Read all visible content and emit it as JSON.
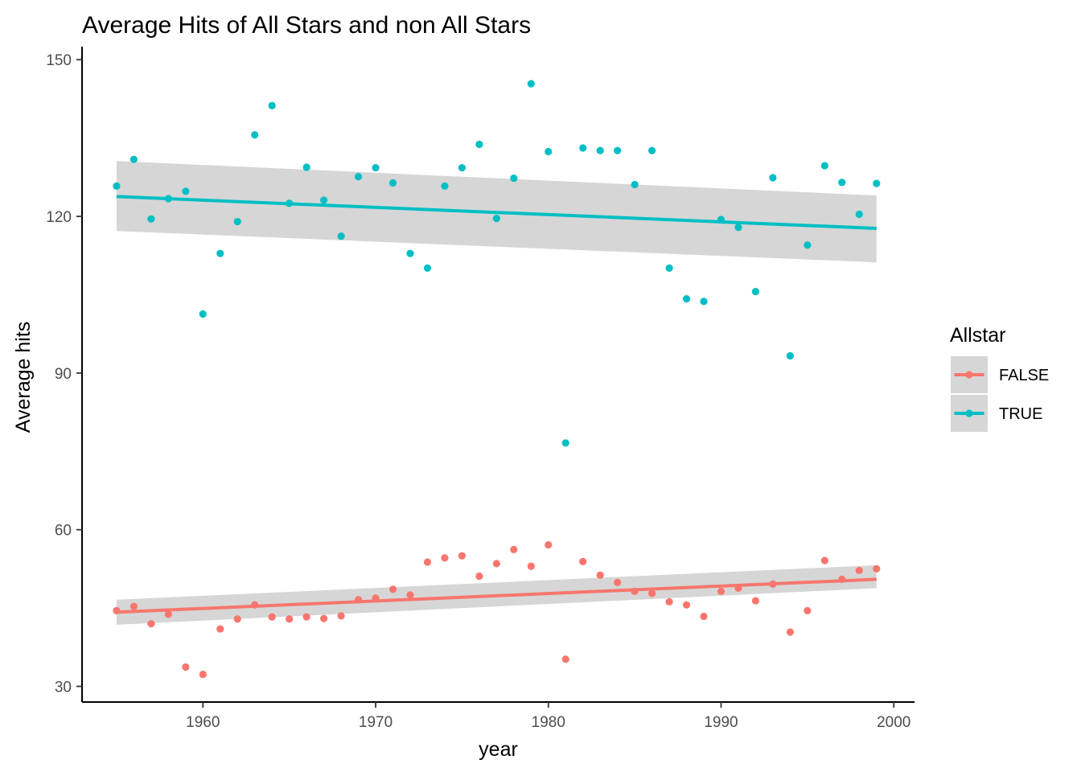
{
  "chart_data": {
    "type": "scatter",
    "title": "Average Hits of All Stars and non All Stars",
    "xlabel": "year",
    "ylabel": "Average hits",
    "xlim": [
      1953,
      2001.2
    ],
    "ylim": [
      27,
      152.5
    ],
    "x_ticks": [
      1960,
      1970,
      1980,
      1990,
      2000
    ],
    "y_ticks": [
      30,
      60,
      90,
      120,
      150
    ],
    "grid": false,
    "legend": {
      "title": "Allstar",
      "position": "right"
    },
    "series": [
      {
        "name": "FALSE",
        "color": "#F8766D",
        "x": [
          1955,
          1956,
          1957,
          1958,
          1959,
          1960,
          1961,
          1962,
          1963,
          1964,
          1965,
          1966,
          1967,
          1968,
          1969,
          1970,
          1971,
          1972,
          1973,
          1974,
          1975,
          1976,
          1977,
          1978,
          1979,
          1980,
          1981,
          1982,
          1983,
          1984,
          1985,
          1986,
          1987,
          1988,
          1989,
          1990,
          1991,
          1992,
          1993,
          1994,
          1995,
          1996,
          1997,
          1998,
          1999
        ],
        "y": [
          44.5,
          45.3,
          42,
          43.8,
          33.7,
          32.3,
          41,
          42.9,
          45.6,
          43.3,
          42.9,
          43.3,
          43,
          43.5,
          46.6,
          46.9,
          48.6,
          47.5,
          53.8,
          54.6,
          55,
          51.1,
          53.5,
          56.2,
          53,
          57.1,
          35.2,
          53.9,
          51.3,
          49.9,
          48.2,
          47.8,
          46.2,
          45.6,
          43.4,
          48.2,
          48.8,
          46.4,
          49.6,
          40.4,
          44.5,
          54.1,
          50.5,
          52.2,
          52.5
        ],
        "trend": [
          44.2,
          50.5
        ],
        "band_low": [
          41.8,
          48.8
        ],
        "band_high": [
          46.6,
          53.2
        ]
      },
      {
        "name": "TRUE",
        "color": "#00BFC4",
        "x": [
          1955,
          1956,
          1957,
          1958,
          1959,
          1960,
          1961,
          1962,
          1963,
          1964,
          1965,
          1966,
          1967,
          1968,
          1969,
          1970,
          1971,
          1972,
          1973,
          1974,
          1975,
          1976,
          1977,
          1978,
          1979,
          1980,
          1981,
          1982,
          1983,
          1984,
          1985,
          1986,
          1987,
          1988,
          1989,
          1990,
          1991,
          1992,
          1993,
          1994,
          1995,
          1996,
          1997,
          1998,
          1999
        ],
        "y": [
          125.8,
          130.9,
          119.5,
          123.4,
          124.8,
          101.3,
          112.9,
          119,
          135.6,
          141.2,
          122.5,
          129.4,
          123.1,
          116.2,
          127.6,
          129.3,
          126.4,
          112.9,
          110.1,
          125.8,
          129.3,
          133.8,
          119.6,
          127.3,
          145.4,
          132.4,
          76.6,
          133.1,
          132.6,
          132.6,
          126.1,
          132.6,
          110.1,
          104.2,
          103.7,
          119.4,
          117.9,
          105.6,
          127.4,
          93.3,
          114.5,
          129.7,
          126.5,
          120.4,
          126.3
        ],
        "trend": [
          123.8,
          117.7
        ],
        "band_low": [
          117.2,
          111.2
        ],
        "band_high": [
          130.6,
          124
        ]
      }
    ]
  }
}
